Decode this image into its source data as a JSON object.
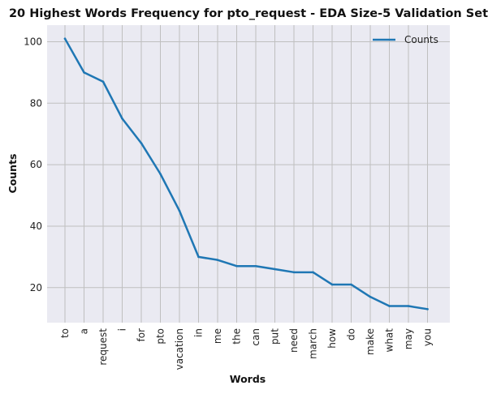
{
  "chart_data": {
    "type": "line",
    "title": "20 Highest Words Frequency for pto_request - EDA Size-5 Validation Set",
    "xlabel": "Words",
    "ylabel": "Counts",
    "categories": [
      "to",
      "a",
      "request",
      "i",
      "for",
      "pto",
      "vacation",
      "in",
      "me",
      "the",
      "can",
      "put",
      "need",
      "march",
      "how",
      "do",
      "make",
      "what",
      "may",
      "you"
    ],
    "series": [
      {
        "name": "Counts",
        "values": [
          101,
          90,
          87,
          75,
          67,
          57,
          45,
          30,
          29,
          27,
          27,
          26,
          25,
          25,
          21,
          21,
          17,
          14,
          14,
          13
        ]
      }
    ],
    "ylim": [
      8.6,
      105.4
    ],
    "yticks": [
      20,
      40,
      60,
      80,
      100
    ],
    "grid": true,
    "legend_position": "top-right",
    "colors": {
      "line": "#1f77b4",
      "plot_background": "#eaeaf2",
      "grid": "#bfbfbf"
    }
  }
}
